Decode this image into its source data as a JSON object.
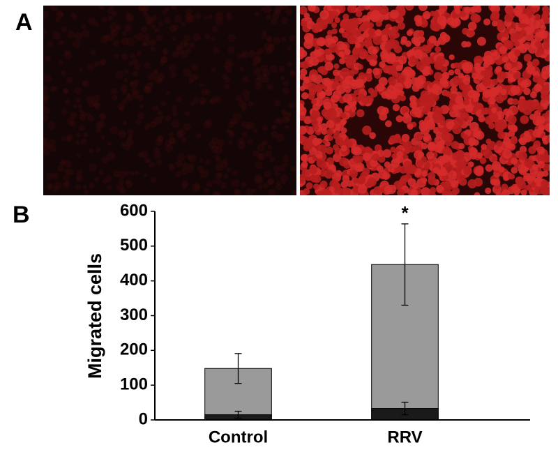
{
  "panel_labels": [
    "A",
    "B"
  ],
  "chart_data": {
    "type": "bar",
    "barmode": "overlay",
    "ylabel": "Migrated cells",
    "categories": [
      "Control",
      "RRV"
    ],
    "series": [
      {
        "color": "#9a9a9a",
        "values": [
          148,
          447
        ],
        "errors": [
          43,
          117
        ]
      },
      {
        "color": "#1a1a1a",
        "values": [
          15,
          33
        ],
        "errors": [
          10,
          18
        ]
      }
    ],
    "ylim": [
      0,
      600
    ],
    "yticks": [
      0,
      100,
      200,
      300,
      400,
      500,
      600
    ],
    "annotations": [
      {
        "text": "*",
        "category": "RRV"
      }
    ]
  }
}
